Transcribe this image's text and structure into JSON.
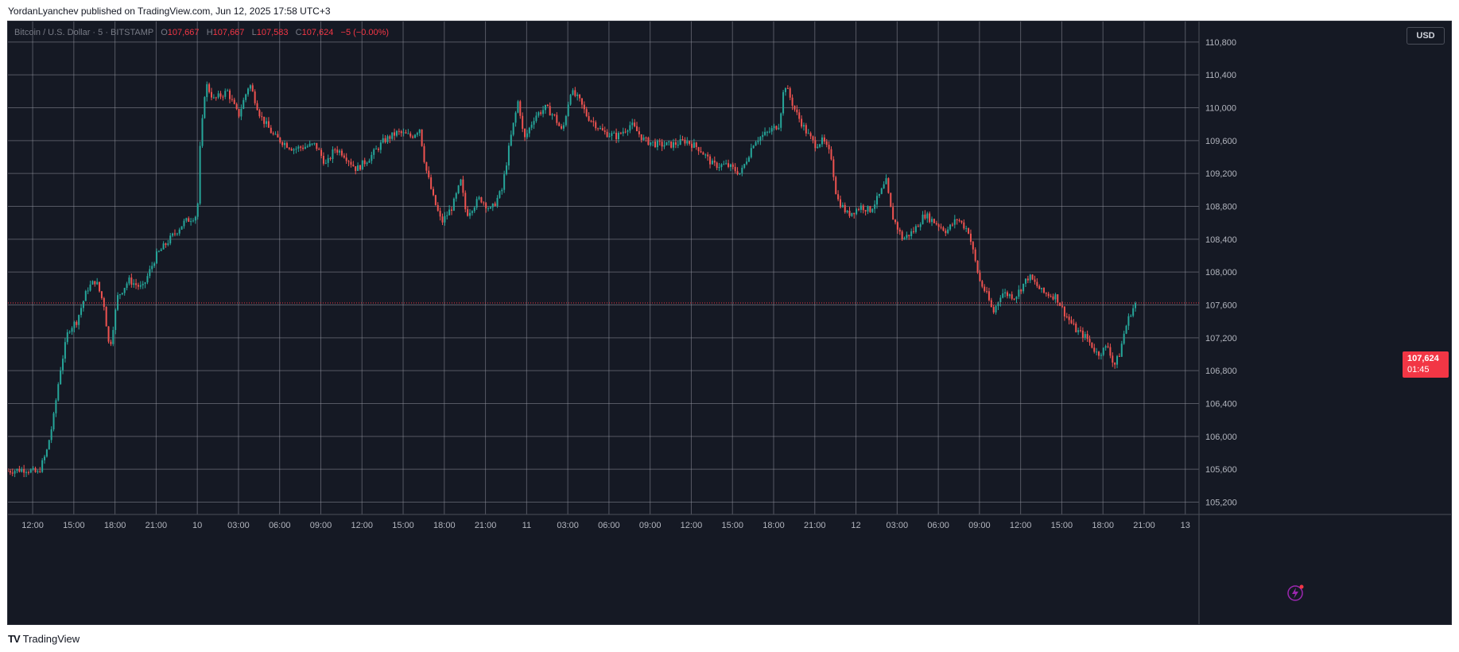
{
  "header": {
    "text": "YordanLyanchev published on TradingView.com, Jun 12, 2025 17:58 UTC+3"
  },
  "legend": {
    "symbol": "Bitcoin / U.S. Dollar · 5 · BITSTAMP",
    "o_label": "O",
    "o_value": "107,667",
    "h_label": "H",
    "h_value": "107,667",
    "l_label": "L",
    "l_value": "107,583",
    "c_label": "C",
    "c_value": "107,624",
    "change": "−5 (−0.00%)"
  },
  "currency": "USD",
  "last_price": {
    "price": "107,624",
    "countdown": "01:45"
  },
  "footer": {
    "logo": "TV",
    "brand": "TradingView"
  },
  "colors": {
    "up": "#26a69a",
    "down": "#ef5350",
    "background": "#151924",
    "grid": "#9598a1",
    "accent": "#f23645"
  },
  "icons": {
    "brand_logo": "tradingview-logo-icon",
    "replay": "replay-lightning-icon"
  },
  "chart_data": {
    "type": "candlestick",
    "title": "Bitcoin / U.S. Dollar · 5 · BITSTAMP",
    "y_ticks": [
      "110,800",
      "110,400",
      "110,000",
      "109,600",
      "109,200",
      "108,800",
      "108,400",
      "108,000",
      "107,600",
      "107,200",
      "106,800",
      "106,400",
      "106,000",
      "105,600",
      "105,200"
    ],
    "y_tick_values": [
      110800,
      110400,
      110000,
      109600,
      109200,
      108800,
      108400,
      108000,
      107600,
      107200,
      106800,
      106400,
      106000,
      105600,
      105200
    ],
    "ylim": [
      105050,
      111050
    ],
    "x_ticks": [
      "12:00",
      "15:00",
      "18:00",
      "21:00",
      "10",
      "03:00",
      "06:00",
      "09:00",
      "12:00",
      "15:00",
      "18:00",
      "21:00",
      "11",
      "03:00",
      "06:00",
      "09:00",
      "12:00",
      "15:00",
      "18:00",
      "21:00",
      "12",
      "03:00",
      "06:00",
      "09:00",
      "12:00",
      "15:00",
      "18:00",
      "21:00",
      "13"
    ],
    "x_tick_hours": [
      12,
      15,
      18,
      21,
      24,
      27,
      30,
      33,
      36,
      39,
      42,
      45,
      48,
      51,
      54,
      57,
      60,
      63,
      66,
      69,
      72,
      75,
      78,
      81,
      84,
      87,
      90,
      93,
      96
    ],
    "x_hour_range": [
      10.2,
      97.0
    ],
    "last_price": 107624,
    "price_path": [
      [
        10.2,
        105580
      ],
      [
        11.5,
        105600
      ],
      [
        12.4,
        105550
      ],
      [
        13,
        105800
      ],
      [
        13.5,
        106200
      ],
      [
        14,
        106800
      ],
      [
        14.6,
        107300
      ],
      [
        15.2,
        107400
      ],
      [
        16,
        107800
      ],
      [
        16.6,
        107900
      ],
      [
        17.2,
        107600
      ],
      [
        17.6,
        107050
      ],
      [
        18.2,
        107700
      ],
      [
        19,
        107900
      ],
      [
        20,
        107800
      ],
      [
        21,
        108200
      ],
      [
        22,
        108400
      ],
      [
        23,
        108600
      ],
      [
        24,
        108700
      ],
      [
        24.2,
        109500
      ],
      [
        24.6,
        110300
      ],
      [
        25.2,
        110100
      ],
      [
        26.2,
        110200
      ],
      [
        27,
        109900
      ],
      [
        27.8,
        110300
      ],
      [
        28.6,
        109900
      ],
      [
        29.6,
        109650
      ],
      [
        31,
        109500
      ],
      [
        32.6,
        109550
      ],
      [
        33.4,
        109300
      ],
      [
        34,
        109500
      ],
      [
        34.6,
        109450
      ],
      [
        35.6,
        109250
      ],
      [
        36.6,
        109400
      ],
      [
        37.6,
        109600
      ],
      [
        38.6,
        109700
      ],
      [
        39.6,
        109650
      ],
      [
        40.2,
        109750
      ],
      [
        40.6,
        109300
      ],
      [
        41.2,
        108900
      ],
      [
        41.8,
        108600
      ],
      [
        42.6,
        108800
      ],
      [
        43.2,
        109100
      ],
      [
        43.6,
        108700
      ],
      [
        44.6,
        108900
      ],
      [
        45.4,
        108750
      ],
      [
        46.2,
        109000
      ],
      [
        46.8,
        109600
      ],
      [
        47.4,
        110100
      ],
      [
        47.8,
        109600
      ],
      [
        48.6,
        109900
      ],
      [
        49.4,
        110000
      ],
      [
        50,
        109900
      ],
      [
        50.6,
        109700
      ],
      [
        51.2,
        110200
      ],
      [
        51.8,
        110100
      ],
      [
        52.4,
        109900
      ],
      [
        53.6,
        109700
      ],
      [
        54.6,
        109650
      ],
      [
        55.6,
        109800
      ],
      [
        56.6,
        109600
      ],
      [
        57.6,
        109550
      ],
      [
        58.6,
        109550
      ],
      [
        59.6,
        109600
      ],
      [
        60.6,
        109500
      ],
      [
        61.6,
        109300
      ],
      [
        62.6,
        109300
      ],
      [
        63.6,
        109200
      ],
      [
        64.6,
        109600
      ],
      [
        65.6,
        109700
      ],
      [
        66.4,
        109800
      ],
      [
        66.8,
        110300
      ],
      [
        67.6,
        109950
      ],
      [
        68.4,
        109700
      ],
      [
        69,
        109550
      ],
      [
        69.6,
        109600
      ],
      [
        70.2,
        109400
      ],
      [
        70.6,
        108900
      ],
      [
        71.4,
        108700
      ],
      [
        72.4,
        108800
      ],
      [
        73,
        108750
      ],
      [
        73.6,
        108900
      ],
      [
        74.2,
        109100
      ],
      [
        74.6,
        108700
      ],
      [
        75.4,
        108400
      ],
      [
        76.2,
        108500
      ],
      [
        77,
        108700
      ],
      [
        77.8,
        108600
      ],
      [
        78.6,
        108500
      ],
      [
        79.4,
        108650
      ],
      [
        80.2,
        108500
      ],
      [
        80.6,
        108200
      ],
      [
        81,
        107900
      ],
      [
        81.6,
        107700
      ],
      [
        82,
        107500
      ],
      [
        82.6,
        107750
      ],
      [
        83.6,
        107700
      ],
      [
        84.6,
        107950
      ],
      [
        85.6,
        107750
      ],
      [
        86.6,
        107700
      ],
      [
        87.2,
        107500
      ],
      [
        88,
        107300
      ],
      [
        88.8,
        107200
      ],
      [
        89.6,
        107000
      ],
      [
        90.4,
        107100
      ],
      [
        90.8,
        106850
      ],
      [
        91.2,
        107000
      ],
      [
        91.6,
        107300
      ],
      [
        92,
        107500
      ],
      [
        92.4,
        107624
      ]
    ]
  }
}
